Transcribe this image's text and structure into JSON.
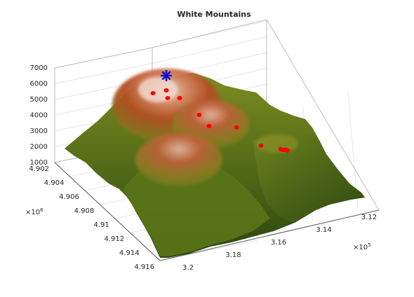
{
  "chart_data": {
    "type": "surface",
    "title": "White Mountains",
    "xlabel": "",
    "ylabel": "",
    "zlabel": "",
    "x_ticks": [
      "3.2",
      "3.18",
      "3.16",
      "3.14",
      "3.12"
    ],
    "x_exponent_base": "×10",
    "x_exponent_power": "5",
    "y_ticks": [
      "4.902",
      "4.904",
      "4.906",
      "4.908",
      "4.91",
      "4.912",
      "4.914",
      "4.916"
    ],
    "y_exponent_base": "×10",
    "y_exponent_power": "6",
    "z_ticks": [
      "1000",
      "2000",
      "3000",
      "4000",
      "5000",
      "6000",
      "7000"
    ],
    "zlim": [
      1000,
      7000
    ],
    "grid": true,
    "colormap": {
      "low": "#2e4a10",
      "mid": "#8a9a2a",
      "high": "#b84a20",
      "peak": "#f2d4cc"
    },
    "peak_marker": {
      "shape": "asterisk",
      "color": "#1010d0"
    },
    "path_markers": {
      "shape": "dot",
      "color": "#ff0000",
      "count": 9
    }
  }
}
